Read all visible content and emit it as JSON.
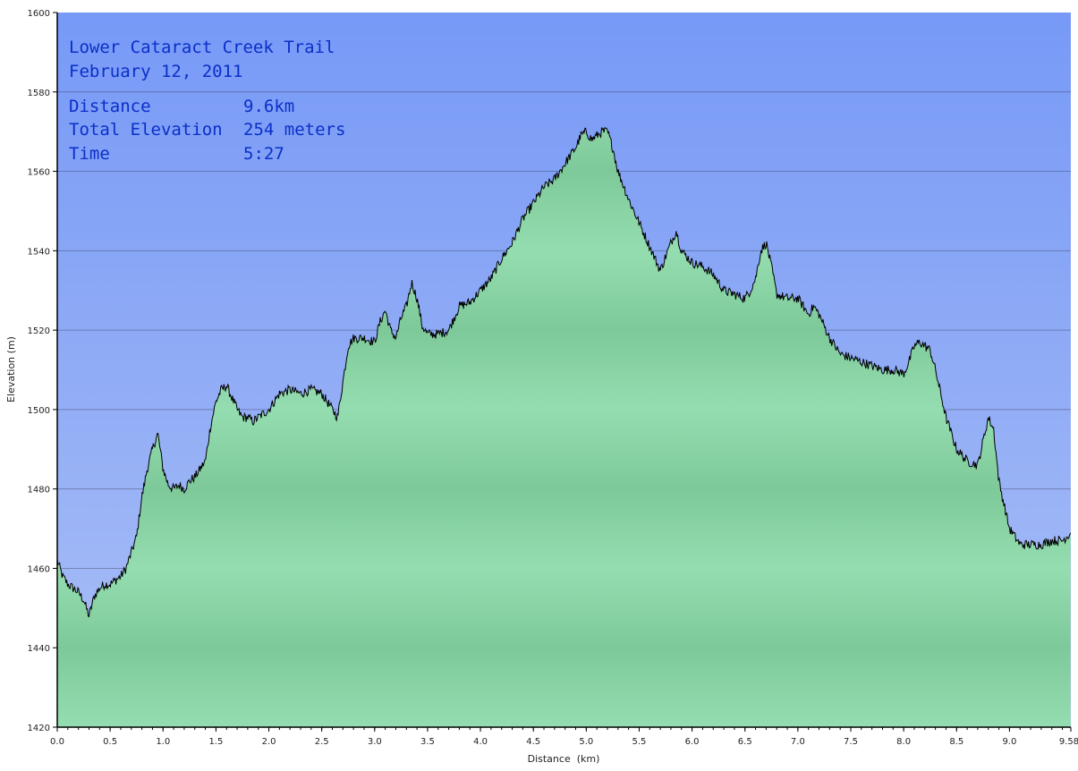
{
  "chart_data": {
    "type": "area",
    "info": {
      "title": "Lower Cataract Creek Trail",
      "date": "February 12, 2011",
      "stats": [
        {
          "label": "Distance",
          "value": "9.6km"
        },
        {
          "label": "Total Elevation",
          "value": "254 meters"
        },
        {
          "label": "Time",
          "value": "5:27"
        }
      ]
    },
    "xlabel": "Distance  (km)",
    "ylabel": "Elevation (m)",
    "xlim": [
      0,
      9.58
    ],
    "ylim": [
      1420,
      1600
    ],
    "x_ticks": [
      "0.0",
      "0.5",
      "1.0",
      "1.5",
      "2.0",
      "2.5",
      "3.0",
      "3.5",
      "4.0",
      "4.5",
      "5.0",
      "5.5",
      "6.0",
      "6.5",
      "7.0",
      "7.5",
      "8.0",
      "8.5",
      "9.0",
      "9.58"
    ],
    "y_ticks": [
      "1420",
      "1440",
      "1460",
      "1480",
      "1500",
      "1520",
      "1540",
      "1560",
      "1580",
      "1600"
    ],
    "grid": true,
    "colors": {
      "sky_top": "#7799f7",
      "sky_bottom": "#aabff5",
      "fill_light": "#94ddb0",
      "fill_dark": "#7ec99a",
      "line": "#000000",
      "info_text": "#0a2fc8"
    },
    "series": [
      {
        "x": [
          0.0,
          0.05,
          0.1,
          0.15,
          0.2,
          0.25,
          0.3,
          0.35,
          0.4,
          0.45,
          0.5,
          0.55,
          0.6,
          0.65,
          0.7,
          0.75,
          0.8,
          0.85,
          0.9,
          0.95,
          1.0,
          1.05,
          1.1,
          1.15,
          1.2,
          1.25,
          1.3,
          1.35,
          1.4,
          1.45,
          1.5,
          1.55,
          1.6,
          1.65,
          1.7,
          1.75,
          1.8,
          1.85,
          1.9,
          1.95,
          2.0,
          2.05,
          2.1,
          2.2,
          2.3,
          2.4,
          2.5,
          2.55,
          2.6,
          2.65,
          2.7,
          2.75,
          2.8,
          2.9,
          3.0,
          3.05,
          3.1,
          3.15,
          3.2,
          3.25,
          3.3,
          3.35,
          3.4,
          3.45,
          3.5,
          3.55,
          3.6,
          3.7,
          3.8,
          3.9,
          4.0,
          4.1,
          4.2,
          4.3,
          4.4,
          4.5,
          4.6,
          4.7,
          4.8,
          4.9,
          4.95,
          5.0,
          5.05,
          5.1,
          5.15,
          5.2,
          5.25,
          5.3,
          5.4,
          5.5,
          5.6,
          5.7,
          5.8,
          5.85,
          5.9,
          6.0,
          6.1,
          6.2,
          6.3,
          6.4,
          6.5,
          6.55,
          6.6,
          6.65,
          6.7,
          6.75,
          6.8,
          6.9,
          7.0,
          7.1,
          7.15,
          7.2,
          7.3,
          7.4,
          7.5,
          7.6,
          7.7,
          7.8,
          7.9,
          8.0,
          8.05,
          8.1,
          8.15,
          8.2,
          8.25,
          8.3,
          8.4,
          8.5,
          8.6,
          8.7,
          8.75,
          8.8,
          8.85,
          8.9,
          9.0,
          9.1,
          9.2,
          9.3,
          9.4,
          9.5,
          9.58
        ],
        "y": [
          1462,
          1458,
          1456,
          1455,
          1454,
          1452,
          1448,
          1453,
          1455,
          1456,
          1456,
          1457,
          1458,
          1460,
          1464,
          1468,
          1478,
          1485,
          1490,
          1494,
          1485,
          1481,
          1480,
          1481,
          1480,
          1482,
          1483,
          1485,
          1487,
          1496,
          1502,
          1505,
          1506,
          1503,
          1500,
          1498,
          1498,
          1497,
          1498,
          1499,
          1500,
          1502,
          1504,
          1505,
          1504,
          1505,
          1504,
          1502,
          1500,
          1498,
          1507,
          1516,
          1518,
          1518,
          1517,
          1522,
          1525,
          1520,
          1518,
          1523,
          1526,
          1532,
          1528,
          1521,
          1519,
          1519,
          1519,
          1520,
          1526,
          1527,
          1530,
          1533,
          1538,
          1542,
          1548,
          1552,
          1556,
          1558,
          1562,
          1566,
          1569,
          1570,
          1568,
          1569,
          1570,
          1570,
          1566,
          1560,
          1553,
          1547,
          1541,
          1535,
          1542,
          1545,
          1540,
          1537,
          1536,
          1534,
          1530,
          1529,
          1528,
          1530,
          1533,
          1540,
          1542,
          1536,
          1529,
          1528,
          1528,
          1524,
          1526,
          1524,
          1518,
          1514,
          1513,
          1512,
          1511,
          1510,
          1510,
          1509,
          1512,
          1516,
          1517,
          1516,
          1515,
          1510,
          1498,
          1490,
          1487,
          1486,
          1492,
          1498,
          1495,
          1482,
          1470,
          1466,
          1466,
          1466,
          1467,
          1467,
          1469
        ]
      }
    ]
  }
}
